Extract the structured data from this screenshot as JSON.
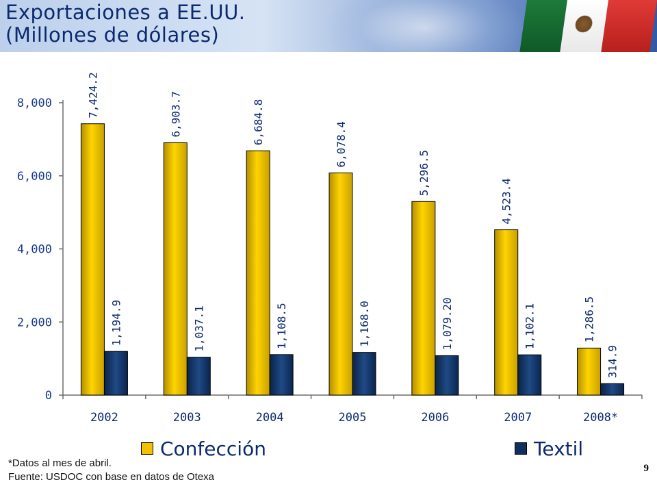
{
  "header": {
    "title": "Exportaciones a EE.UU.\n(Millones de dólares)"
  },
  "chart_data": {
    "type": "bar",
    "title": "Exportaciones a EE.UU. (Millones de dólares)",
    "categories": [
      "2002",
      "2003",
      "2004",
      "2005",
      "2006",
      "2007",
      "2008*"
    ],
    "series": [
      {
        "name": "Confección",
        "color": "#f2c200",
        "values": [
          7424.2,
          6903.7,
          6684.8,
          6078.4,
          5296.5,
          4523.4,
          1286.5
        ],
        "labels": [
          "7,424.2",
          "6,903.7",
          "6,684.8",
          "6,078.4",
          "5,296.5",
          "4,523.4",
          "1,286.5"
        ]
      },
      {
        "name": "Textil",
        "color": "#0f2f5f",
        "values": [
          1194.9,
          1037.1,
          1108.5,
          1168.0,
          1079.2,
          1102.1,
          314.9
        ],
        "labels": [
          "1,194.9",
          "1,037.1",
          "1,108.5",
          "1,168.0",
          "1,079.20",
          "1,102.1",
          "314.9"
        ]
      }
    ],
    "yticks": [
      "0",
      "2,000",
      "4,000",
      "6,000",
      "8,000"
    ],
    "ytick_values": [
      0,
      2000,
      4000,
      6000,
      8000
    ],
    "ylim": [
      0,
      8000
    ],
    "grid": false,
    "legend_placement": "bottom"
  },
  "legend": {
    "confeccion": "Confección",
    "textil": "Textil"
  },
  "footer": {
    "note": "*Datos al mes de abril.",
    "source": "Fuente: USDOC con base en datos de Otexa",
    "page_number": "9"
  }
}
